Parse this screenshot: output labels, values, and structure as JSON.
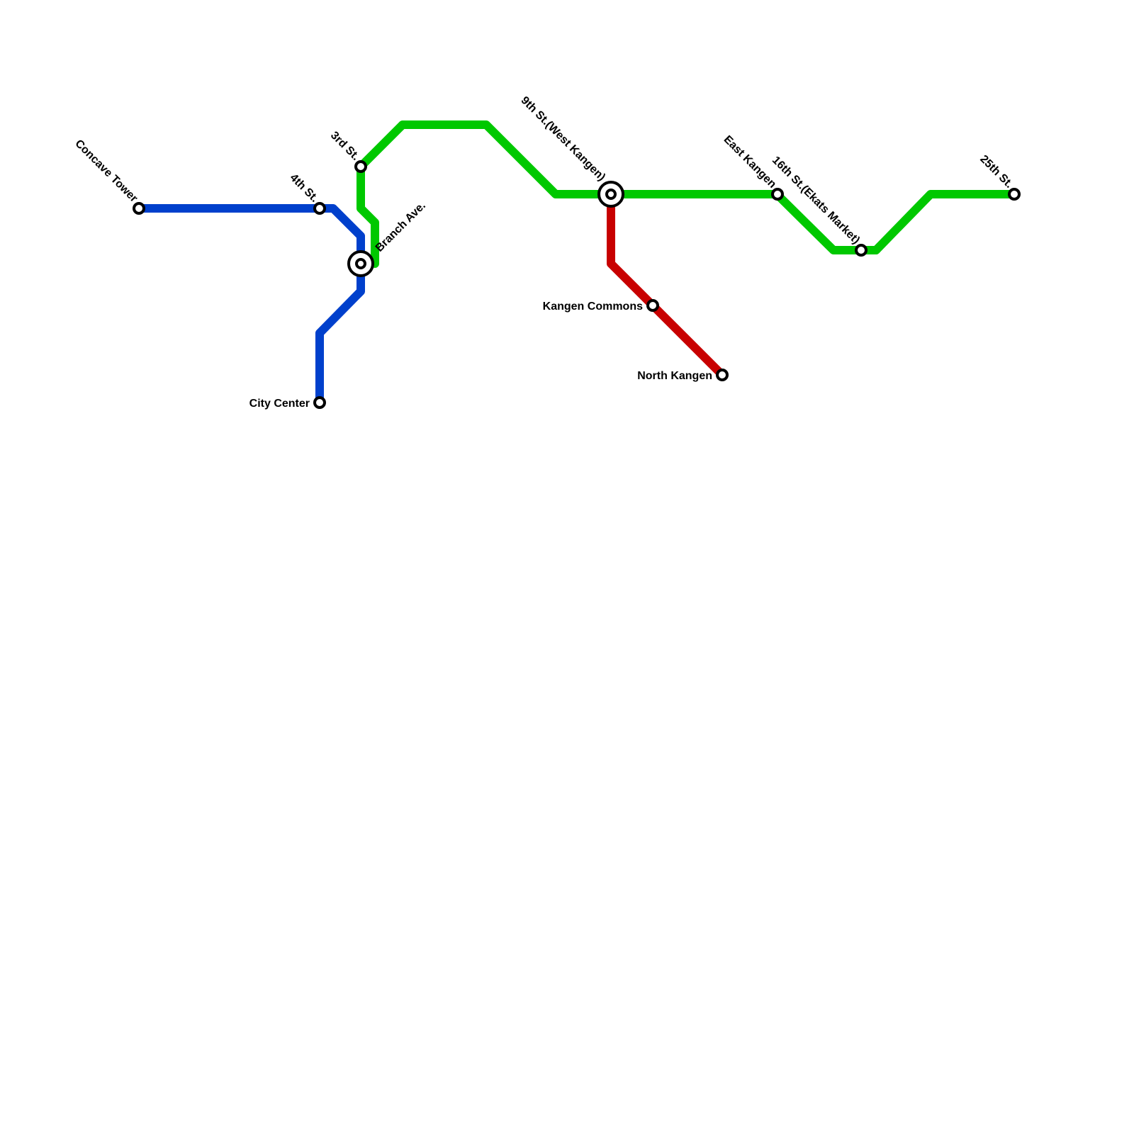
{
  "lines": {
    "blue": {
      "color": "#0040cc"
    },
    "green": {
      "color": "#00c800"
    },
    "red": {
      "color": "#c80000"
    }
  },
  "stations": {
    "concave_tower": "Concave Tower",
    "fourth_st": "4th St.",
    "branch_ave": "Branch Ave.",
    "third_st": "3rd St.",
    "city_center": "City Center",
    "ninth_st": "9th St.(West Kangen)",
    "kangen_commons": "Kangen Commons",
    "north_kangen": "North Kangen",
    "east_kangen": "East Kangen",
    "sixteenth_st": "16th St.(Ekats Market)",
    "twentyfifth_st": "25th St."
  }
}
